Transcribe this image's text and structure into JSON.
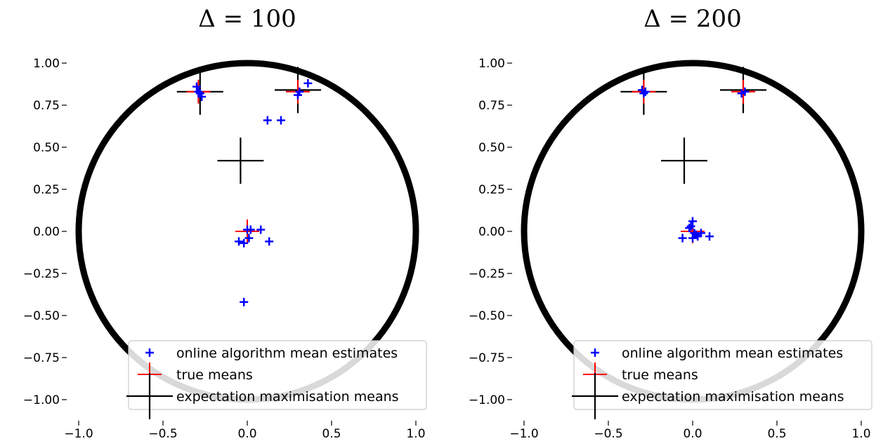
{
  "chart_data": [
    {
      "type": "scatter",
      "title": "Δ = 100",
      "xlim": [
        -1.05,
        1.05
      ],
      "ylim": [
        -1.05,
        1.05
      ],
      "xticks": [
        "−1.0",
        "−0.5",
        "0.0",
        "0.5",
        "1.0"
      ],
      "xtick_values": [
        -1.0,
        -0.5,
        0.0,
        0.5,
        1.0
      ],
      "yticks": [
        "1.00",
        "0.75",
        "0.50",
        "0.25",
        "0.00",
        "−0.25",
        "−0.50",
        "−0.75",
        "−1.00"
      ],
      "ytick_values": [
        1.0,
        0.75,
        0.5,
        0.25,
        0.0,
        -0.25,
        -0.5,
        -0.75,
        -1.0
      ],
      "grid": false,
      "legend_position": "lower-right",
      "circle": {
        "center": [
          0,
          0
        ],
        "radius": 1.0,
        "color": "#000000"
      },
      "series": [
        {
          "name": "online algorithm mean estimates",
          "marker": "plus-small",
          "color": "#0000ff",
          "points": [
            [
              -0.3,
              0.86
            ],
            [
              -0.29,
              0.83
            ],
            [
              -0.27,
              0.8
            ],
            [
              -0.28,
              0.82
            ],
            [
              0.3,
              0.81
            ],
            [
              0.31,
              0.83
            ],
            [
              0.36,
              0.88
            ],
            [
              0.12,
              0.66
            ],
            [
              0.2,
              0.66
            ],
            [
              -0.05,
              -0.06
            ],
            [
              -0.02,
              -0.07
            ],
            [
              0.01,
              -0.04
            ],
            [
              0.0,
              0.01
            ],
            [
              0.02,
              0.01
            ],
            [
              0.08,
              0.01
            ],
            [
              0.13,
              -0.06
            ],
            [
              -0.02,
              -0.42
            ]
          ]
        },
        {
          "name": "true means",
          "marker": "plus-medium",
          "color": "#ff0000",
          "points": [
            [
              -0.29,
              0.83
            ],
            [
              0.3,
              0.83
            ],
            [
              0.0,
              0.0
            ]
          ]
        },
        {
          "name": "expectation maximisation means",
          "marker": "plus-large",
          "color": "#000000",
          "points": [
            [
              -0.28,
              0.83
            ],
            [
              0.3,
              0.84
            ],
            [
              -0.04,
              0.42
            ]
          ]
        }
      ]
    },
    {
      "type": "scatter",
      "title": "Δ = 200",
      "xlim": [
        -1.05,
        1.05
      ],
      "ylim": [
        -1.05,
        1.05
      ],
      "xticks": [
        "−1.0",
        "−0.5",
        "0.0",
        "0.5",
        "1.0"
      ],
      "xtick_values": [
        -1.0,
        -0.5,
        0.0,
        0.5,
        1.0
      ],
      "yticks": [
        "1.00",
        "0.75",
        "0.50",
        "0.25",
        "0.00",
        "−0.25",
        "−0.50",
        "−0.75",
        "−1.00"
      ],
      "ytick_values": [
        1.0,
        0.75,
        0.5,
        0.25,
        0.0,
        -0.25,
        -0.5,
        -0.75,
        -1.0
      ],
      "grid": false,
      "legend_position": "lower-right",
      "circle": {
        "center": [
          0,
          0
        ],
        "radius": 1.0,
        "color": "#000000"
      },
      "series": [
        {
          "name": "online algorithm mean estimates",
          "marker": "plus-small",
          "color": "#0000ff",
          "points": [
            [
              -0.3,
              0.84
            ],
            [
              -0.29,
              0.82
            ],
            [
              -0.28,
              0.83
            ],
            [
              0.29,
              0.82
            ],
            [
              0.31,
              0.83
            ],
            [
              -0.06,
              -0.04
            ],
            [
              -0.02,
              0.02
            ],
            [
              0.0,
              0.06
            ],
            [
              -0.01,
              0.03
            ],
            [
              0.0,
              -0.04
            ],
            [
              0.02,
              -0.02
            ],
            [
              0.03,
              -0.03
            ],
            [
              0.05,
              -0.01
            ],
            [
              0.1,
              -0.03
            ],
            [
              0.01,
              -0.01
            ]
          ]
        },
        {
          "name": "true means",
          "marker": "plus-medium",
          "color": "#ff0000",
          "points": [
            [
              -0.29,
              0.83
            ],
            [
              0.3,
              0.83
            ],
            [
              0.0,
              0.0
            ]
          ]
        },
        {
          "name": "expectation maximisation means",
          "marker": "plus-large",
          "color": "#000000",
          "points": [
            [
              -0.29,
              0.83
            ],
            [
              0.3,
              0.84
            ],
            [
              -0.05,
              0.42
            ]
          ]
        }
      ]
    }
  ]
}
